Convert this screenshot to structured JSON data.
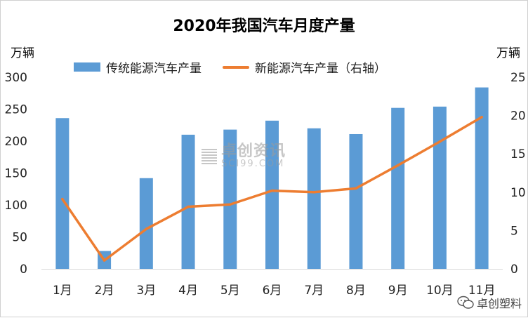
{
  "chart_data": {
    "type": "bar+line",
    "title": "2020年我国汽车月度产量",
    "unit_left": "万辆",
    "unit_right": "万辆",
    "categories": [
      "1月",
      "2月",
      "3月",
      "4月",
      "5月",
      "6月",
      "7月",
      "8月",
      "9月",
      "10月",
      "11月"
    ],
    "series": [
      {
        "name": "传统能源汽车产量",
        "type": "bar",
        "axis": "left",
        "values": [
          236,
          28,
          142,
          210,
          218,
          232,
          220,
          211,
          252,
          254,
          284
        ]
      },
      {
        "name": "新能源汽车产量（右轴）",
        "type": "line",
        "axis": "right",
        "values": [
          9.1,
          1.1,
          5.2,
          8.1,
          8.4,
          10.2,
          10.0,
          10.5,
          13.5,
          16.6,
          19.8
        ]
      }
    ],
    "ylim_left": [
      0,
      300
    ],
    "yticks_left": [
      0,
      50,
      100,
      150,
      200,
      250,
      300
    ],
    "ylim_right": [
      0,
      25
    ],
    "yticks_right": [
      0,
      5,
      10,
      15,
      20,
      25
    ],
    "legend_position": "top",
    "grid": false,
    "colors": {
      "bar": "#5b9bd5",
      "line": "#ed7d31"
    }
  },
  "watermark": {
    "main": "卓创资讯",
    "sub": "SCI99.COM"
  },
  "footer": {
    "wechat_label": "卓创塑料",
    "icon": "wechat-icon"
  }
}
